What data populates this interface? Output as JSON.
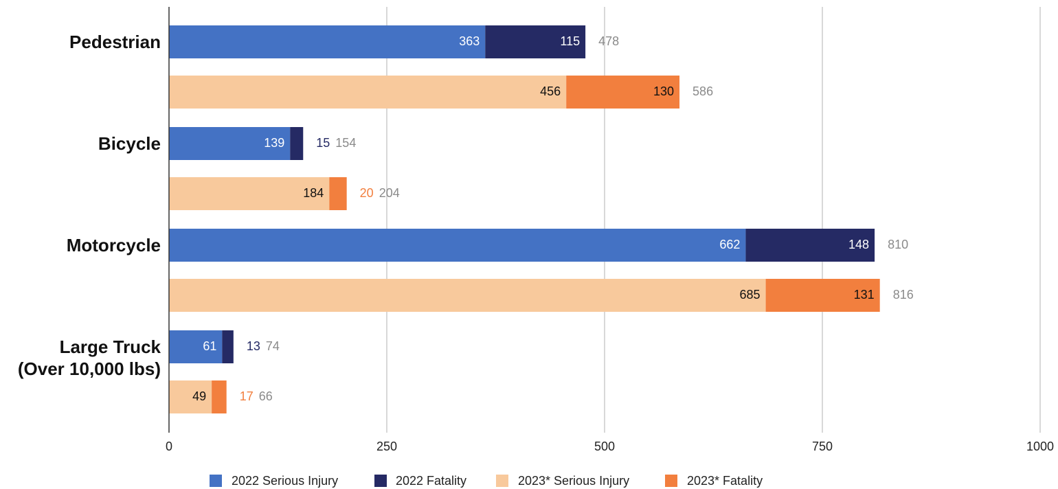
{
  "chart_data": {
    "type": "stacked_bar_horizontal_grouped",
    "categories": [
      "Pedestrian",
      "Bicycle",
      "Motorcycle",
      "Large Truck\n(Over 10,000 lbs)"
    ],
    "series": [
      {
        "name": "2022 Serious Injury",
        "color": "#4472c4",
        "stack": 0,
        "label_color": "#ffffff",
        "values": [
          363,
          139,
          662,
          61
        ]
      },
      {
        "name": "2022 Fatality",
        "color": "#252a64",
        "stack": 0,
        "label_color": "#ffffff",
        "values": [
          115,
          15,
          148,
          13
        ]
      },
      {
        "name": "2023* Serious Injury",
        "color": "#f8c99c",
        "stack": 1,
        "label_color": "#111111",
        "values": [
          456,
          184,
          685,
          49
        ]
      },
      {
        "name": "2023* Fatality",
        "color": "#f27f3e",
        "stack": 1,
        "label_color": "#111111",
        "values": [
          130,
          20,
          131,
          17
        ]
      }
    ],
    "totals": [
      [
        478,
        154,
        810,
        74
      ],
      [
        586,
        204,
        816,
        66
      ]
    ],
    "xlim": [
      0,
      1000
    ],
    "xticks": [
      0,
      250,
      500,
      750,
      1000
    ],
    "grid": true,
    "legend": "bottom"
  }
}
